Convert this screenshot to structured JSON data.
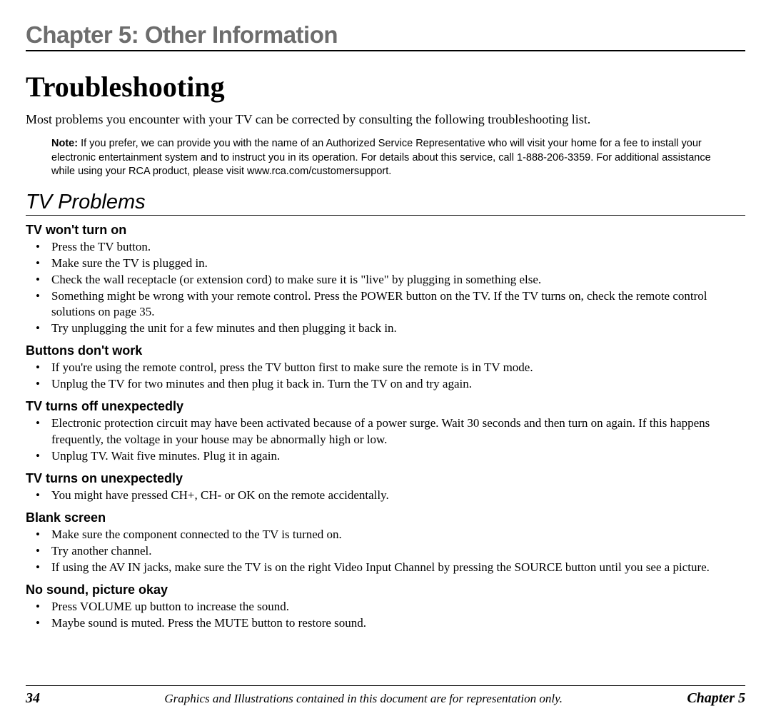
{
  "header": {
    "chapter_title": "Chapter 5: Other Information"
  },
  "main": {
    "heading": "Troubleshooting",
    "intro": "Most problems you encounter with your TV can be corrected by consulting the following troubleshooting list.",
    "note_label": "Note:",
    "note_body": " If you prefer, we can provide you with the name of an Authorized Service Representative who will visit your home for a fee to install your electronic entertainment system and to instruct you in its operation. For details about this service, call 1-888-206-3359. For additional assistance while using your RCA product, please visit www.rca.com/customersupport.",
    "section_title": "TV Problems",
    "problems": [
      {
        "title": "TV won't turn on",
        "items": [
          "Press the TV button.",
          "Make sure the TV is plugged in.",
          "Check the wall receptacle (or extension cord) to make sure it is \"live\" by plugging in something else.",
          "Something might be wrong with your remote control. Press the POWER button on the TV. If the TV turns on, check the remote control solutions on page 35.",
          "Try unplugging the unit for a few minutes and then plugging it back in."
        ]
      },
      {
        "title": "Buttons don't work",
        "items": [
          "If you're using the remote control, press the TV button first to make sure the remote is in TV mode.",
          "Unplug the TV for two minutes and then plug it back in. Turn the TV on and try again."
        ]
      },
      {
        "title": "TV turns off unexpectedly",
        "items": [
          "Electronic protection circuit may have been activated because of a power surge.  Wait 30 seconds and then turn on again.  If this happens frequently, the voltage in your house may be abnormally high or low.",
          "Unplug TV. Wait five minutes. Plug it in again."
        ]
      },
      {
        "title": "TV turns on unexpectedly",
        "items": [
          "You might have pressed CH+, CH- or OK on the remote accidentally."
        ]
      },
      {
        "title": "Blank screen",
        "items": [
          "Make sure the component connected to the TV is turned on.",
          "Try another channel.",
          "If using the AV IN jacks, make sure the TV is on the right Video Input Channel by pressing the SOURCE button until you see a picture."
        ]
      },
      {
        "title": "No sound, picture okay",
        "items": [
          "Press VOLUME up button to increase the sound.",
          "Maybe sound is muted. Press the MUTE button to restore sound."
        ]
      }
    ]
  },
  "footer": {
    "page_number": "34",
    "caption": "Graphics and Illustrations contained in this document are for representation only.",
    "chapter_ref": "Chapter 5"
  }
}
